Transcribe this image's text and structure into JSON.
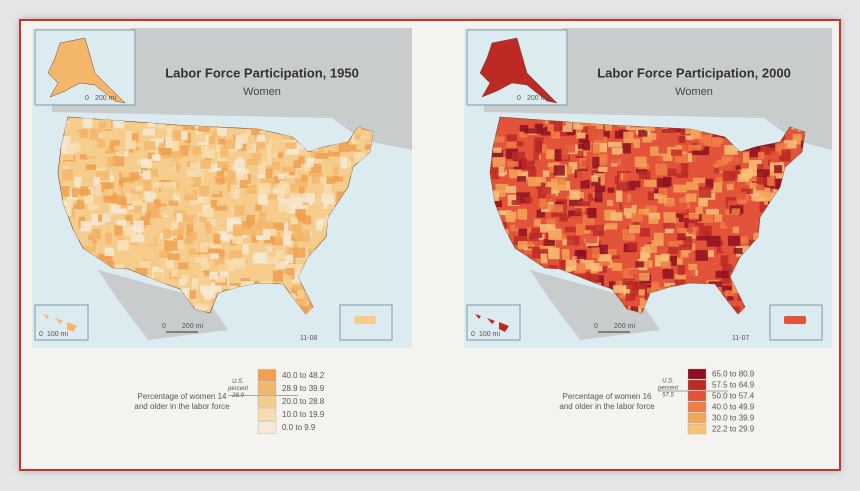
{
  "maps": [
    {
      "title": "Labor Force Participation, 1950",
      "subtitle": "Women",
      "code": "11-08",
      "scale": {
        "main": [
          "0",
          "200 mi"
        ],
        "alaska": [
          "0",
          "200 mi"
        ],
        "hawaii": [
          "0",
          "100 mi"
        ]
      },
      "legend": {
        "caption": [
          "Percentage of women 14",
          "and older in the labor force"
        ],
        "note": [
          "U.S.",
          "percent",
          "28.9"
        ],
        "items": [
          {
            "label": "40.0 to 48.2",
            "color": "#f0a050"
          },
          {
            "label": "28.9 to 39.9",
            "color": "#f3b66a"
          },
          {
            "label": "20.0 to 28.8",
            "color": "#f6cc8c"
          },
          {
            "label": "10.0 to 19.9",
            "color": "#f8ddb0"
          },
          {
            "label": "0.0 to 9.9",
            "color": "#f5ead6"
          }
        ]
      }
    },
    {
      "title": "Labor Force Participation, 2000",
      "subtitle": "Women",
      "code": "11-07",
      "scale": {
        "main": [
          "0",
          "200 mi"
        ],
        "alaska": [
          "0",
          "200 mi"
        ],
        "hawaii": [
          "0",
          "100 mi"
        ]
      },
      "legend": {
        "caption": [
          "Percentage of women 16",
          "and older in the labor force"
        ],
        "note": [
          "U.S.",
          "percent",
          "57.5"
        ],
        "items": [
          {
            "label": "65.0 to 80.9",
            "color": "#8e1020"
          },
          {
            "label": "57.5 to 64.9",
            "color": "#bd2a26"
          },
          {
            "label": "50.0 to 57.4",
            "color": "#e2533a"
          },
          {
            "label": "40.0 to 49.9",
            "color": "#ee7e45"
          },
          {
            "label": "30.0 to 39.9",
            "color": "#f4a55a"
          },
          {
            "label": "22.2 to 29.9",
            "color": "#f7c27a"
          }
        ]
      }
    }
  ]
}
